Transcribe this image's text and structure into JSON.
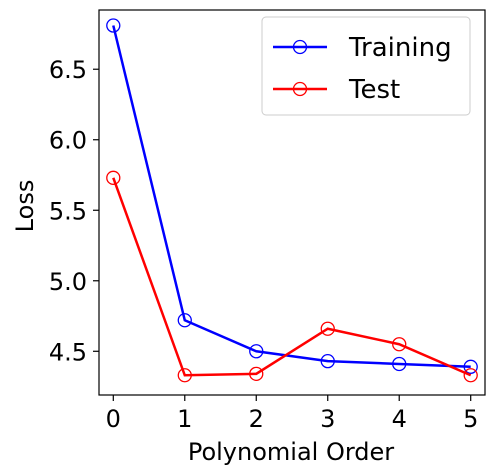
{
  "chart_data": {
    "type": "line",
    "xlabel": "Polynomial Order",
    "ylabel": "Loss",
    "x": [
      0,
      1,
      2,
      3,
      4,
      5
    ],
    "xlim": [
      -0.2,
      5.2
    ],
    "ylim": [
      4.19,
      6.92
    ],
    "xticks": [
      "0",
      "1",
      "2",
      "3",
      "4",
      "5"
    ],
    "yticks": [
      "4.5",
      "5.0",
      "5.5",
      "6.0",
      "6.5"
    ],
    "ytick_values": [
      4.5,
      5.0,
      5.5,
      6.0,
      6.5
    ],
    "grid": false,
    "legend_position": "top-right",
    "series": [
      {
        "name": "Training",
        "color": "#0000ff",
        "marker": "open-circle",
        "values": [
          6.81,
          4.72,
          4.5,
          4.43,
          4.41,
          4.39
        ]
      },
      {
        "name": "Test",
        "color": "#ff0000",
        "marker": "open-circle",
        "values": [
          5.73,
          4.33,
          4.34,
          4.66,
          4.55,
          4.33
        ]
      }
    ]
  }
}
